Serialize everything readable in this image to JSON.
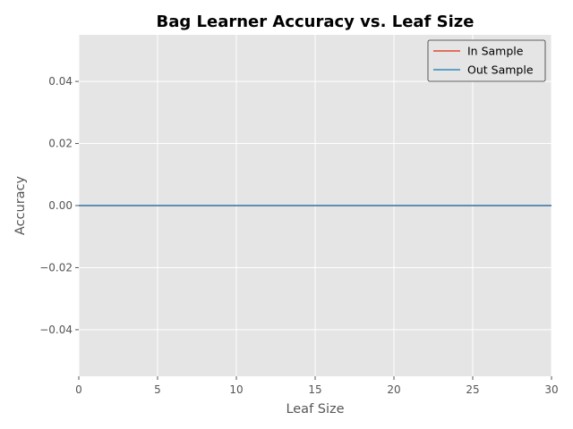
{
  "chart_data": {
    "type": "line",
    "title": "Bag Learner Accuracy vs. Leaf Size",
    "xlabel": "Leaf Size",
    "ylabel": "Accuracy",
    "xlim": [
      0,
      30
    ],
    "ylim": [
      -0.055,
      0.055
    ],
    "xticks": [
      0,
      5,
      10,
      15,
      20,
      25,
      30
    ],
    "xtick_labels": [
      "0",
      "5",
      "10",
      "15",
      "20",
      "25",
      "30"
    ],
    "yticks": [
      0.04,
      0.02,
      0.0,
      -0.02,
      -0.04
    ],
    "ytick_labels": [
      "0.04",
      "0.02",
      "0.00",
      "−0.02",
      "−0.04"
    ],
    "grid": true,
    "legend_position": "top-right",
    "series": [
      {
        "name": "In Sample",
        "color": "#E24A33",
        "x": [
          0,
          30
        ],
        "y": [
          0,
          0
        ]
      },
      {
        "name": "Out Sample",
        "color": "#348ABD",
        "x": [
          0,
          30
        ],
        "y": [
          0,
          0
        ]
      }
    ]
  }
}
